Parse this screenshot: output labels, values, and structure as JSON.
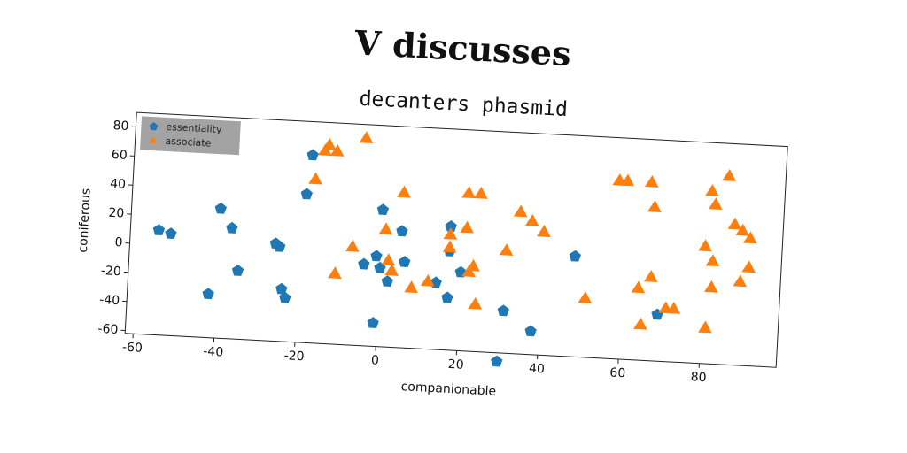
{
  "chart_data": {
    "type": "scatter",
    "title": "V discusses",
    "subtitle": "decanters phasmid",
    "xlabel": "companionable",
    "ylabel": "coniferous",
    "xlim": [
      -62,
      99
    ],
    "ylim": [
      -62,
      90
    ],
    "xticks": [
      -60,
      -40,
      -20,
      0,
      20,
      40,
      60,
      80
    ],
    "yticks": [
      -60,
      -40,
      -20,
      0,
      20,
      40,
      60,
      80
    ],
    "legend": "upper left",
    "series": [
      {
        "name": "essentiality",
        "color": "#1f77b4",
        "marker": "pentagon",
        "x": [
          -55,
          -52,
          -40,
          -37,
          -35,
          -42,
          -26,
          -25,
          -24,
          -23,
          -19,
          -18,
          0,
          5,
          -1,
          -4,
          0,
          6,
          2,
          -1,
          14,
          17,
          17,
          17,
          20,
          31,
          38,
          30,
          48,
          69
        ],
        "values": [
          10,
          8,
          27,
          14,
          -15,
          -32,
          5,
          3,
          -26,
          -32,
          40,
          67,
          32,
          18,
          0,
          -6,
          -8,
          -3,
          -17,
          -46,
          -16,
          -26,
          23,
          6,
          -8,
          -33,
          -46,
          -68,
          7,
          -30
        ]
      },
      {
        "name": "associate",
        "color": "#ff7f0e",
        "marker": "triangle",
        "x": [
          -17,
          -15,
          -14,
          -12,
          -5,
          -11,
          -7,
          5,
          1,
          2,
          3,
          8,
          12,
          17,
          17,
          21,
          21,
          24,
          22,
          23,
          24,
          31,
          34,
          37,
          40,
          51,
          58,
          60,
          66,
          67,
          67,
          64,
          65,
          71,
          73,
          80,
          81,
          82,
          82,
          82,
          81,
          85,
          87,
          89,
          91,
          89,
          91
        ],
        "values": [
          50,
          70,
          74,
          70,
          80,
          -14,
          5,
          44,
          18,
          -3,
          -10,
          -21,
          -16,
          8,
          17,
          22,
          46,
          46,
          -8,
          -4,
          -30,
          8,
          35,
          29,
          22,
          -22,
          60,
          60,
          60,
          43,
          -5,
          -13,
          -38,
          -26,
          -26,
          18,
          56,
          47,
          8,
          -10,
          -38,
          67,
          34,
          30,
          25,
          -5,
          5
        ]
      }
    ]
  }
}
